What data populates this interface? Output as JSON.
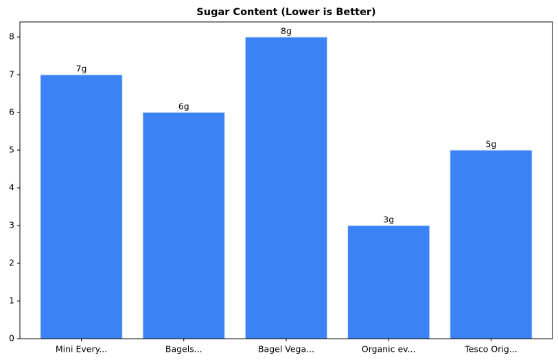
{
  "chart_data": {
    "type": "bar",
    "title": "Sugar Content (Lower is Better)",
    "categories": [
      "Mini Every...",
      "Bagels...",
      "Bagel Vega...",
      "Organic ev...",
      "Tesco Orig..."
    ],
    "values": [
      7,
      6,
      8,
      3,
      5
    ],
    "value_labels": [
      "7g",
      "6g",
      "8g",
      "3g",
      "5g"
    ],
    "color": "#3b82f6",
    "ylim": [
      0,
      8.4
    ],
    "yticks": [
      0,
      1,
      2,
      3,
      4,
      5,
      6,
      7,
      8
    ],
    "grid": false
  }
}
